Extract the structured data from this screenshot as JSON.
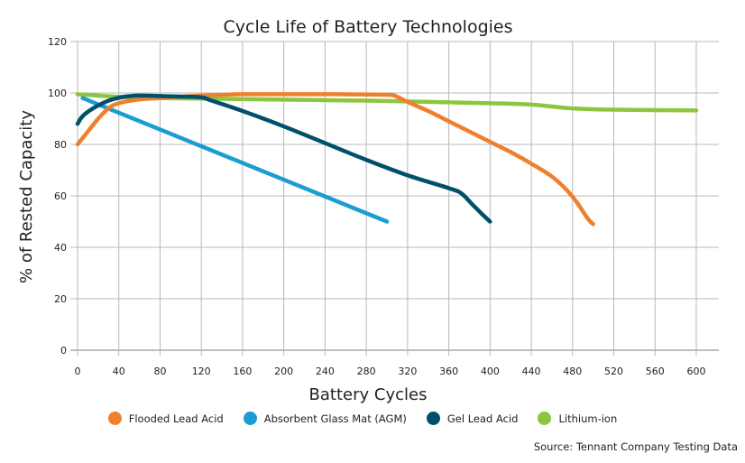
{
  "chart_data": {
    "type": "line",
    "title": "Cycle Life of Battery Technologies",
    "xlabel": "Battery Cycles",
    "ylabel": "% of Rested Capacity",
    "xlim": [
      0,
      600
    ],
    "ylim": [
      0,
      120
    ],
    "xticks": [
      0,
      40,
      80,
      120,
      160,
      200,
      240,
      280,
      320,
      360,
      400,
      440,
      480,
      520,
      560,
      600
    ],
    "yticks": [
      0,
      20,
      40,
      60,
      80,
      100,
      120
    ],
    "grid": true,
    "legend_position": "bottom",
    "series": [
      {
        "name": "Flooded Lead Acid",
        "color": "#f07f2d",
        "points": [
          [
            0,
            80
          ],
          [
            10,
            85
          ],
          [
            20,
            90
          ],
          [
            30,
            94
          ],
          [
            40,
            96
          ],
          [
            60,
            97.5
          ],
          [
            80,
            98
          ],
          [
            120,
            99
          ],
          [
            160,
            99.5
          ],
          [
            200,
            99.5
          ],
          [
            250,
            99.5
          ],
          [
            300,
            99.3
          ],
          [
            310,
            98.5
          ],
          [
            320,
            96.5
          ],
          [
            340,
            93
          ],
          [
            360,
            89
          ],
          [
            380,
            85
          ],
          [
            400,
            81
          ],
          [
            420,
            77
          ],
          [
            440,
            72.5
          ],
          [
            460,
            67.5
          ],
          [
            475,
            62
          ],
          [
            485,
            57
          ],
          [
            495,
            51
          ],
          [
            500,
            49
          ]
        ]
      },
      {
        "name": "Absorbent Glass Mat (AGM)",
        "color": "#1a9dd1",
        "points": [
          [
            5,
            98
          ],
          [
            300,
            50
          ]
        ]
      },
      {
        "name": "Gel Lead Acid",
        "color": "#00506b",
        "points": [
          [
            0,
            88
          ],
          [
            5,
            91
          ],
          [
            15,
            94
          ],
          [
            30,
            97
          ],
          [
            45,
            98.5
          ],
          [
            60,
            99
          ],
          [
            80,
            98.8
          ],
          [
            100,
            98.6
          ],
          [
            120,
            98.3
          ],
          [
            130,
            97
          ],
          [
            160,
            93
          ],
          [
            200,
            87
          ],
          [
            240,
            80.5
          ],
          [
            280,
            74
          ],
          [
            320,
            68
          ],
          [
            360,
            63
          ],
          [
            372,
            61
          ],
          [
            382,
            57
          ],
          [
            392,
            53
          ],
          [
            400,
            50
          ]
        ]
      },
      {
        "name": "Lithium-ion",
        "color": "#8cc63f",
        "points": [
          [
            0,
            99.5
          ],
          [
            40,
            98.5
          ],
          [
            80,
            98
          ],
          [
            120,
            97.8
          ],
          [
            200,
            97.4
          ],
          [
            280,
            97
          ],
          [
            320,
            96.7
          ],
          [
            400,
            96
          ],
          [
            440,
            95.5
          ],
          [
            480,
            94
          ],
          [
            520,
            93.5
          ],
          [
            600,
            93.2
          ]
        ]
      }
    ],
    "source": "Source: Tennant Company Testing Data"
  }
}
